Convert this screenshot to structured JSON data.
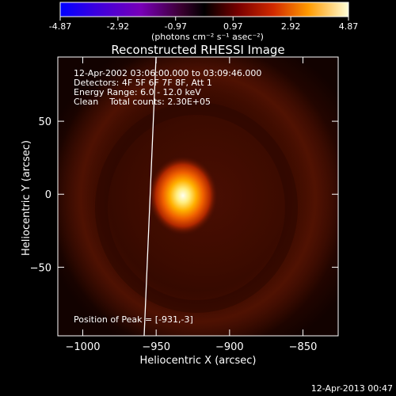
{
  "colorbar": {
    "tick_labels": [
      "-4.87",
      "-2.92",
      "-0.97",
      "0.97",
      "2.92",
      "4.87"
    ],
    "tick_values": [
      -4.87,
      -2.92,
      -0.97,
      0.97,
      2.92,
      4.87
    ],
    "range": [
      -4.87,
      4.87
    ],
    "units": "(photons cm⁻² s⁻¹ asec⁻²)"
  },
  "title": "Reconstructed RHESSI Image",
  "info": {
    "time_range": "12-Apr-2002 03:06:00.000 to 03:09:46.000",
    "detectors": "Detectors: 4F 5F 6F 7F 8F, Att 1",
    "energy": "Energy Range: 6.0 - 12.0 keV",
    "clean": "Clean    Total counts: 2.30E+05",
    "peak": "Position of Peak = [-931,-3]"
  },
  "axes": {
    "xlabel": "Heliocentric X (arcsec)",
    "ylabel": "Heliocentric Y (arcsec)",
    "xlim": [
      -1017,
      -826
    ],
    "ylim": [
      -97,
      94
    ],
    "xticks": [
      {
        "value": -1000,
        "label": "−1000"
      },
      {
        "value": -950,
        "label": "−950"
      },
      {
        "value": -900,
        "label": "−900"
      },
      {
        "value": -850,
        "label": "−850"
      }
    ],
    "yticks": [
      {
        "value": 50,
        "label": "50"
      },
      {
        "value": 0,
        "label": "0"
      },
      {
        "value": -50,
        "label": "−50"
      }
    ]
  },
  "peak_position": [
    -931,
    -3
  ],
  "timestamp": "12-Apr-2013 00:47"
}
